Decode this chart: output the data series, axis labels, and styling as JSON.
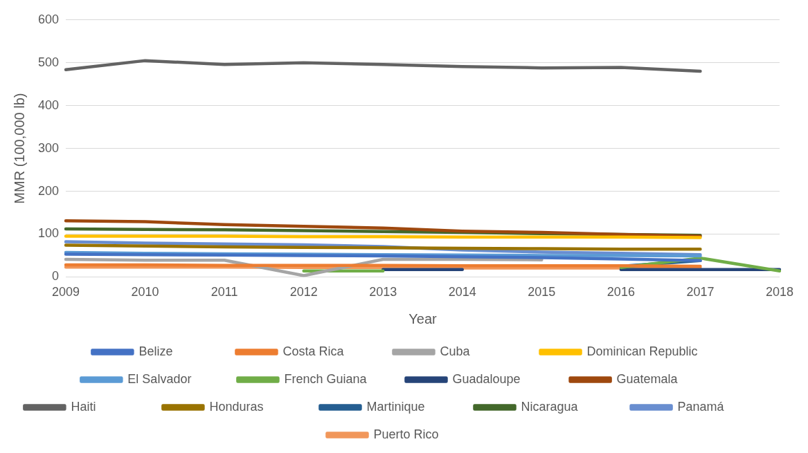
{
  "chart_data": {
    "type": "line",
    "xlabel": "Year",
    "ylabel": "MMR (100,000 lb)",
    "categories": [
      "2009",
      "2010",
      "2011",
      "2012",
      "2013",
      "2014",
      "2015",
      "2016",
      "2017",
      "2018"
    ],
    "ylim": [
      0,
      600
    ],
    "yticks": [
      0,
      100,
      200,
      300,
      400,
      500,
      600
    ],
    "grid": "y",
    "legend": "bottom",
    "marker": "none",
    "line_style": "solid",
    "series": [
      {
        "name": "Belize",
        "color": "#4472c4",
        "values": [
          53,
          52,
          51,
          50,
          49,
          47,
          45,
          42,
          38,
          null
        ]
      },
      {
        "name": "Costa Rica",
        "color": "#ed7d31",
        "values": [
          28,
          28,
          27,
          27,
          27,
          26,
          26,
          26,
          25,
          null
        ]
      },
      {
        "name": "Cuba",
        "color": "#a5a5a5",
        "values": [
          41,
          39,
          39,
          3,
          41,
          41,
          40,
          null,
          null,
          null
        ]
      },
      {
        "name": "Dominican Republic",
        "color": "#ffc000",
        "values": [
          95,
          95,
          95,
          94,
          94,
          93,
          93,
          93,
          92,
          null
        ]
      },
      {
        "name": "El Salvador",
        "color": "#5b9bd5",
        "values": [
          57,
          55,
          54,
          53,
          52,
          51,
          50,
          50,
          49,
          null
        ]
      },
      {
        "name": "French Guiana",
        "color": "#70ad47",
        "values": [
          null,
          null,
          null,
          14,
          14,
          null,
          null,
          22,
          44,
          14
        ]
      },
      {
        "name": "Guadaloupe",
        "color": "#264478",
        "values": [
          null,
          null,
          null,
          null,
          17,
          17,
          null,
          17,
          17,
          17
        ]
      },
      {
        "name": "Guatemala",
        "color": "#9e480e",
        "values": [
          131,
          129,
          122,
          118,
          114,
          107,
          104,
          99,
          95,
          null
        ]
      },
      {
        "name": "Haiti",
        "color": "#636363",
        "values": [
          484,
          505,
          496,
          500,
          496,
          491,
          488,
          489,
          480,
          null
        ]
      },
      {
        "name": "Honduras",
        "color": "#997300",
        "values": [
          74,
          72,
          70,
          69,
          68,
          67,
          66,
          65,
          65,
          null
        ]
      },
      {
        "name": "Martinique",
        "color": "#255e91",
        "values": [
          null,
          null,
          null,
          null,
          null,
          null,
          null,
          25,
          38,
          null
        ]
      },
      {
        "name": "Nicaragua",
        "color": "#43682b",
        "values": [
          112,
          111,
          110,
          108,
          106,
          104,
          101,
          99,
          97,
          null
        ]
      },
      {
        "name": "Panamá",
        "color": "#698ed0",
        "values": [
          82,
          79,
          77,
          75,
          71,
          63,
          58,
          55,
          52,
          null
        ]
      },
      {
        "name": "Puerto Rico",
        "color": "#f1975a",
        "values": [
          23,
          23,
          23,
          22,
          22,
          21,
          21,
          21,
          21,
          null
        ]
      }
    ]
  }
}
